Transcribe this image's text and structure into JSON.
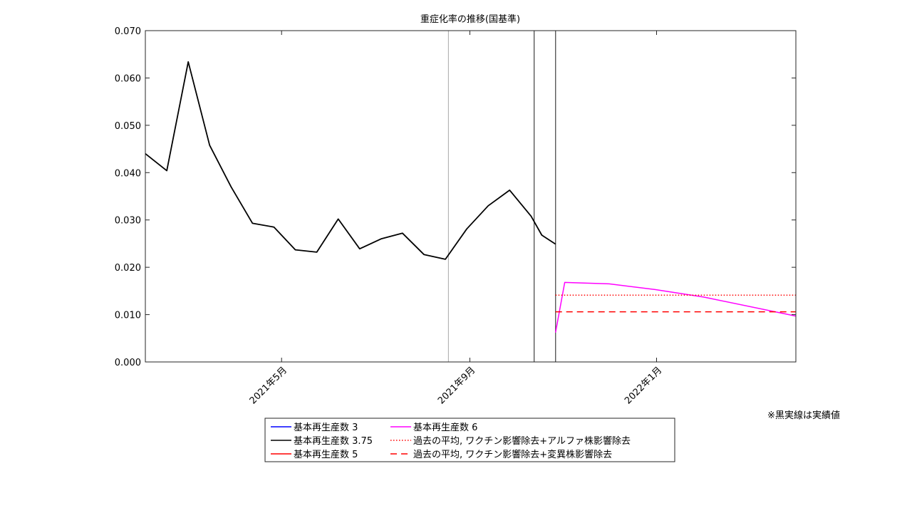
{
  "chart_data": {
    "type": "line",
    "title": "重症化率の推移(国基準)",
    "xlabel": "",
    "ylabel": "",
    "ylim": [
      0,
      0.07
    ],
    "yticks": [
      "0.000",
      "0.010",
      "0.020",
      "0.030",
      "0.040",
      "0.050",
      "0.060",
      "0.070"
    ],
    "xlim": [
      "2021-02-01",
      "2022-04-02"
    ],
    "xticks": [
      {
        "date": "2021-05-01",
        "label": "2021年5月"
      },
      {
        "date": "2021-09-01",
        "label": "2021年9月"
      },
      {
        "date": "2022-01-01",
        "label": "2022年1月"
      }
    ],
    "grid": false,
    "vertical_markers": [
      {
        "date": "2021-08-18",
        "style": "thin-gray"
      },
      {
        "date": "2021-10-13",
        "style": "dark"
      },
      {
        "date": "2021-10-27",
        "style": "dark"
      }
    ],
    "legend_position": "below",
    "series": [
      {
        "name": "基本再生産数 3",
        "color": "#0000ff",
        "style": "solid",
        "x": [],
        "y": []
      },
      {
        "name": "基本再生産数 3.75",
        "color": "#000000",
        "style": "solid",
        "x": [],
        "y": []
      },
      {
        "name": "基本再生産数 5",
        "color": "#ff0000",
        "style": "solid",
        "x": [],
        "y": []
      },
      {
        "name": "基本再生産数 6",
        "color": "#ff00ff",
        "style": "solid",
        "x": [
          "2021-10-27",
          "2021-11-02",
          "2021-12-01",
          "2021-12-31",
          "2022-02-01",
          "2022-04-02"
        ],
        "y": [
          0.0062,
          0.0168,
          0.0165,
          0.0153,
          0.0137,
          0.0097
        ]
      },
      {
        "name": "過去の平均, ワクチン影響除去+アルファ株影響除去",
        "color": "#ff0000",
        "style": "dotted",
        "x": [
          "2021-10-27",
          "2022-04-02"
        ],
        "y": [
          0.0141,
          0.0141
        ]
      },
      {
        "name": "過去の平均, ワクチン影響除去+変異株影響除去",
        "color": "#ff0000",
        "style": "dashed",
        "x": [
          "2021-10-27",
          "2022-04-02"
        ],
        "y": [
          0.0106,
          0.0106
        ]
      }
    ],
    "actual": {
      "color": "#000000",
      "x": [
        "2021-02-01",
        "2021-02-15",
        "2021-03-01",
        "2021-03-15",
        "2021-03-29",
        "2021-04-12",
        "2021-04-26",
        "2021-05-10",
        "2021-05-24",
        "2021-06-07",
        "2021-06-21",
        "2021-07-05",
        "2021-07-19",
        "2021-08-02",
        "2021-08-16",
        "2021-08-30",
        "2021-09-13",
        "2021-09-27",
        "2021-10-11",
        "2021-10-18",
        "2021-10-27"
      ],
      "y": [
        0.044,
        0.0404,
        0.0634,
        0.0458,
        0.037,
        0.0293,
        0.0285,
        0.0237,
        0.0232,
        0.0302,
        0.0239,
        0.026,
        0.0272,
        0.0227,
        0.0217,
        0.0281,
        0.033,
        0.0363,
        0.0308,
        0.0268,
        0.0249
      ]
    }
  },
  "note": "※黒実線は実績値"
}
